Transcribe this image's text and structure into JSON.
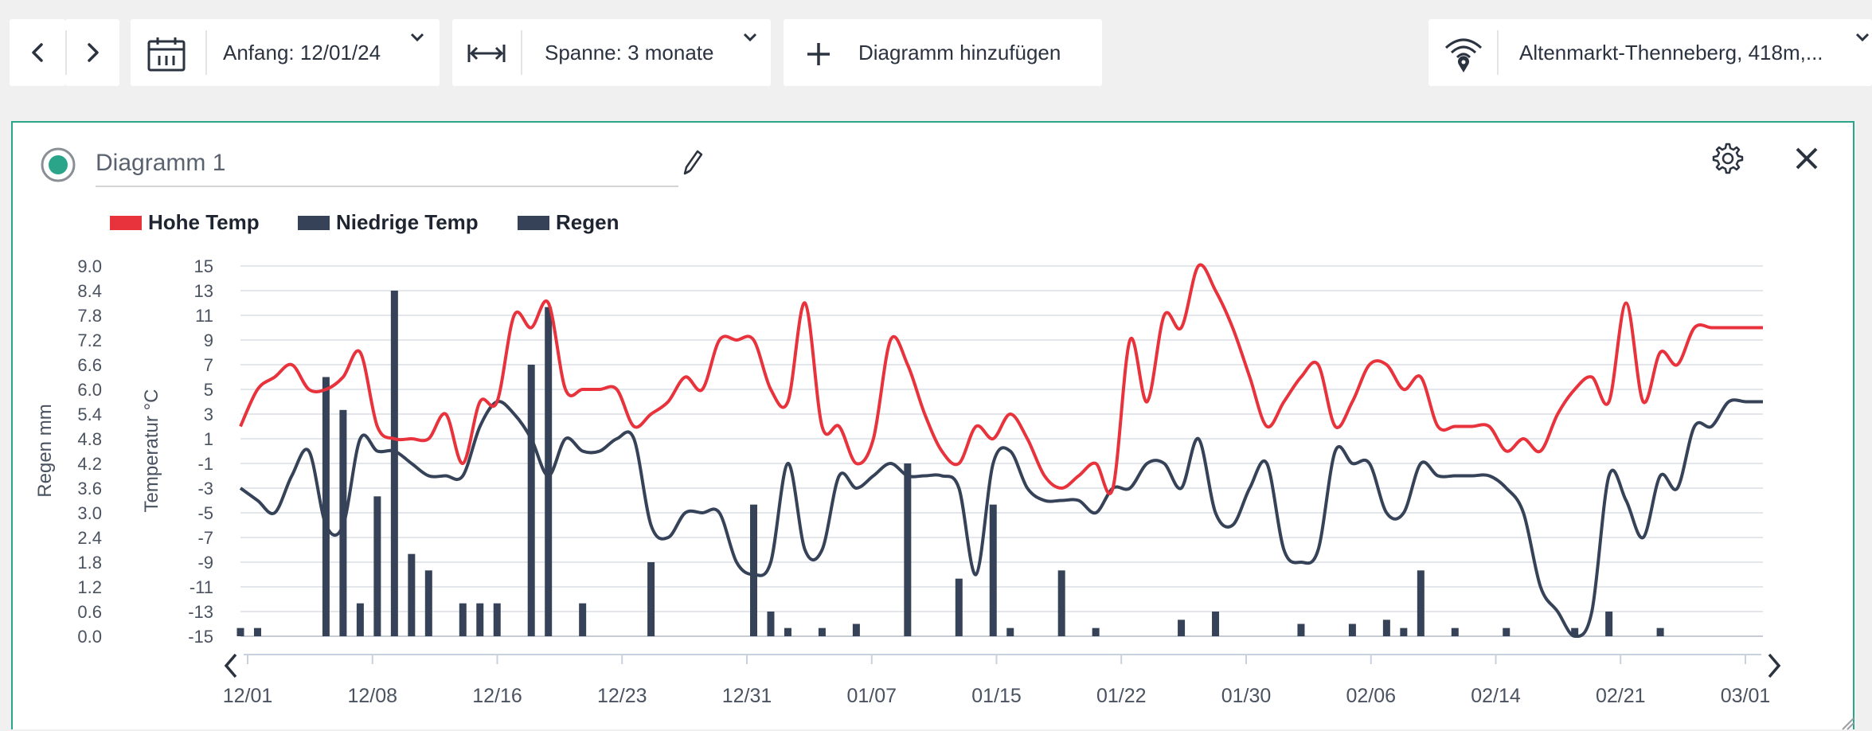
{
  "toolbar": {
    "start_label": "Anfang: 12/01/24",
    "span_label": "Spanne: 3 monate",
    "add_chart_label": "Diagramm hinzufügen",
    "station_label": "Altenmarkt-Thenneberg, 418m,..."
  },
  "chart": {
    "title": "Diagramm 1",
    "legend": [
      "Hohe Temp",
      "Niedrige Temp",
      "Regen"
    ]
  },
  "colors": {
    "accent": "#2aa58a",
    "high": "#e8323c",
    "low": "#354257",
    "rain": "#354257"
  },
  "chart_data": {
    "type": "line",
    "ylabel_left": "Regen mm",
    "ylabel_right": "Temperatur °C",
    "y_rain_ticks": [
      "9.0",
      "8.4",
      "7.8",
      "7.2",
      "6.6",
      "6.0",
      "5.4",
      "4.8",
      "4.2",
      "3.6",
      "3.0",
      "2.4",
      "1.8",
      "1.2",
      "0.6",
      "0.0"
    ],
    "y_temp_ticks": [
      "15",
      "13",
      "11",
      "9",
      "7",
      "5",
      "3",
      "1",
      "-1",
      "-3",
      "-5",
      "-7",
      "-9",
      "-11",
      "-13",
      "-15"
    ],
    "ylim_temp": [
      -15,
      15
    ],
    "ylim_rain": [
      0,
      9
    ],
    "x_ticks": [
      "12/01",
      "12/08",
      "12/16",
      "12/23",
      "12/31",
      "01/07",
      "01/15",
      "01/22",
      "01/30",
      "02/06",
      "02/14",
      "02/21",
      "03/01"
    ],
    "grid": true,
    "series": [
      {
        "name": "Hohe Temp",
        "type": "line",
        "day": [
          0,
          1,
          2,
          3,
          4,
          5,
          6,
          7,
          8,
          9,
          10,
          11,
          12,
          13,
          14,
          15,
          16,
          17,
          18,
          19,
          20,
          21,
          22,
          23,
          24,
          25,
          26,
          27,
          28,
          29,
          30,
          31,
          32,
          33,
          34,
          35,
          36,
          37,
          38,
          39,
          40,
          41,
          42,
          43,
          44,
          45,
          46,
          47,
          48,
          49,
          50,
          51,
          52,
          53,
          54,
          55,
          56,
          57,
          58,
          59,
          60,
          61,
          62,
          63,
          64,
          65,
          66,
          67,
          68,
          69,
          70,
          71,
          72,
          73,
          74,
          75,
          76,
          77,
          78,
          79,
          80,
          81,
          82,
          83,
          84,
          85,
          86,
          87,
          88,
          89
        ],
        "values": [
          2,
          5,
          6,
          7,
          5,
          5,
          6,
          8,
          2,
          1,
          1,
          1,
          3,
          -1,
          4,
          4,
          11,
          10,
          12,
          5,
          5,
          5,
          5,
          2,
          3,
          4,
          6,
          5,
          9,
          9,
          9,
          5,
          4,
          12,
          2,
          2,
          -1,
          1,
          9,
          7,
          3,
          0,
          -1,
          2,
          1,
          3,
          1,
          -2,
          -3,
          -2,
          -1,
          -3,
          9,
          4,
          11,
          10,
          15,
          13,
          10,
          6,
          2,
          4,
          6,
          7,
          2,
          4,
          7,
          7,
          5,
          6,
          2,
          2,
          2,
          2,
          0,
          1,
          0,
          3,
          5,
          6,
          4,
          12,
          4,
          8,
          7,
          10,
          10,
          10,
          10,
          10
        ]
      },
      {
        "name": "Niedrige Temp",
        "type": "line",
        "day": [
          0,
          1,
          2,
          3,
          4,
          5,
          6,
          7,
          8,
          9,
          10,
          11,
          12,
          13,
          14,
          15,
          16,
          17,
          18,
          19,
          20,
          21,
          22,
          23,
          24,
          25,
          26,
          27,
          28,
          29,
          30,
          31,
          32,
          33,
          34,
          35,
          36,
          37,
          38,
          39,
          40,
          41,
          42,
          43,
          44,
          45,
          46,
          47,
          48,
          49,
          50,
          51,
          52,
          53,
          54,
          55,
          56,
          57,
          58,
          59,
          60,
          61,
          62,
          63,
          64,
          65,
          66,
          67,
          68,
          69,
          70,
          71,
          72,
          73,
          74,
          75,
          76,
          77,
          78,
          79,
          80,
          81,
          82,
          83,
          84,
          85,
          86,
          87,
          88,
          89
        ],
        "values": [
          -3,
          -4,
          -5,
          -2,
          0,
          -6,
          -6,
          1,
          0,
          0,
          -1,
          -2,
          -2,
          -2,
          2,
          4,
          3,
          1,
          -2,
          1,
          0,
          0,
          1,
          1,
          -6,
          -7,
          -5,
          -5,
          -5,
          -9,
          -10,
          -9,
          -1,
          -8,
          -8,
          -2,
          -3,
          -2,
          -1,
          -2,
          -2,
          -2,
          -3,
          -10,
          -1,
          0,
          -3,
          -4,
          -4,
          -4,
          -5,
          -3,
          -3,
          -1,
          -1,
          -3,
          1,
          -5,
          -6,
          -3,
          -1,
          -8,
          -9,
          -8,
          0,
          -1,
          -1,
          -5,
          -5,
          -1,
          -2,
          -2,
          -2,
          -2,
          -3,
          -5,
          -11,
          -13,
          -15,
          -13,
          -2,
          -4,
          -7,
          -2,
          -3,
          2,
          2,
          4,
          4,
          4
        ]
      },
      {
        "name": "Regen",
        "type": "bar",
        "day": [
          0,
          1,
          5,
          6,
          7,
          8,
          9,
          10,
          11,
          13,
          14,
          15,
          17,
          18,
          20,
          24,
          30,
          31,
          32,
          34,
          36,
          39,
          42,
          44,
          45,
          48,
          50,
          55,
          57,
          62,
          65,
          67,
          68,
          69,
          71,
          74,
          78,
          80,
          83
        ],
        "values": [
          0.2,
          0.2,
          6.3,
          5.5,
          0.8,
          3.4,
          8.4,
          2.0,
          1.6,
          0.8,
          0.8,
          0.8,
          6.6,
          8.0,
          0.8,
          1.8,
          3.2,
          0.6,
          0.2,
          0.2,
          0.3,
          4.2,
          1.4,
          3.2,
          0.2,
          1.6,
          0.2,
          0.4,
          0.6,
          0.3,
          0.3,
          0.4,
          0.2,
          1.6,
          0.2,
          0.2,
          0.2,
          0.6,
          0.2
        ]
      }
    ]
  }
}
